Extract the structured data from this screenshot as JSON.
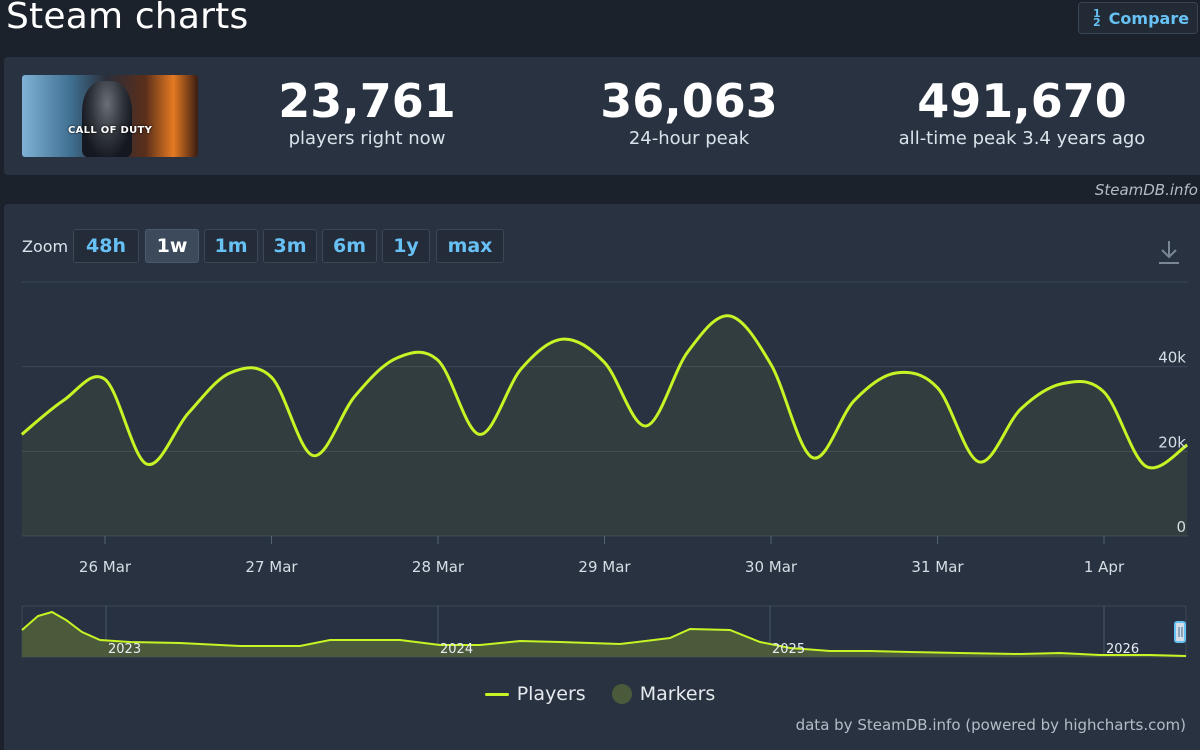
{
  "page": {
    "title": "Steam charts"
  },
  "compare": {
    "label": "Compare",
    "icon": "fraction-icon"
  },
  "game": {
    "cover_logo": "CALL OF DUTY"
  },
  "stats": [
    {
      "value": "23,761",
      "label": "players right now"
    },
    {
      "value": "36,063",
      "label": "24-hour peak"
    },
    {
      "value": "491,670",
      "label": "all-time peak 3.4 years ago"
    }
  ],
  "credit_top": "SteamDB.info",
  "zoom": {
    "label": "Zoom",
    "options": [
      "48h",
      "1w",
      "1m",
      "3m",
      "6m",
      "1y",
      "max"
    ],
    "active": "1w"
  },
  "chart_data": {
    "type": "line",
    "series": [
      {
        "name": "Players",
        "color": "#c6f425",
        "x": [
          "25 Mar 12:00",
          "25 Mar 18:00",
          "26 Mar 00:00",
          "26 Mar 06:00",
          "26 Mar 12:00",
          "26 Mar 18:00",
          "27 Mar 00:00",
          "27 Mar 06:00",
          "27 Mar 12:00",
          "27 Mar 18:00",
          "28 Mar 00:00",
          "28 Mar 06:00",
          "28 Mar 12:00",
          "28 Mar 18:00",
          "29 Mar 00:00",
          "29 Mar 06:00",
          "29 Mar 12:00",
          "29 Mar 18:00",
          "30 Mar 00:00",
          "30 Mar 06:00",
          "30 Mar 12:00",
          "30 Mar 18:00",
          "31 Mar 00:00",
          "31 Mar 06:00",
          "31 Mar 12:00",
          "31 Mar 18:00",
          "1 Apr 00:00",
          "1 Apr 06:00",
          "1 Apr 12:00"
        ],
        "values": [
          24000,
          32000,
          37000,
          17000,
          29000,
          38500,
          37500,
          19000,
          33000,
          42000,
          41500,
          24000,
          39500,
          46500,
          41000,
          26000,
          43500,
          52000,
          40500,
          18500,
          32000,
          38500,
          35000,
          17500,
          30000,
          36000,
          34000,
          16500,
          21500
        ]
      }
    ],
    "x_tick_labels": [
      "26 Mar",
      "27 Mar",
      "28 Mar",
      "29 Mar",
      "30 Mar",
      "31 Mar",
      "1 Apr"
    ],
    "y_tick_labels": [
      "0",
      "20k",
      "40k"
    ],
    "ylim": [
      0,
      60000
    ],
    "grid": true,
    "navigator": {
      "year_labels": [
        "2023",
        "2024",
        "2025",
        "2026"
      ]
    },
    "legend": [
      "Players",
      "Markers"
    ],
    "legend_placement": "bottom-center"
  },
  "credit_bottom": "data by SteamDB.info (powered by highcharts.com)"
}
